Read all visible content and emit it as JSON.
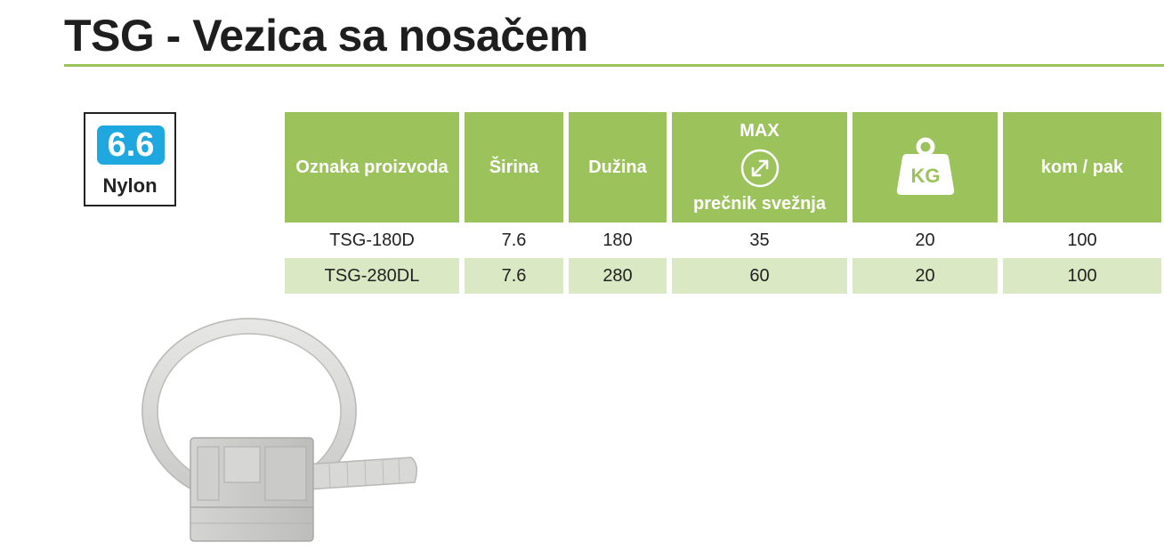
{
  "header": {
    "title": "TSG - Vezica sa nosačem"
  },
  "badge": {
    "number": "6.6",
    "label": "Nylon",
    "color": "#1fa8e0"
  },
  "table": {
    "accent": "#9cc25c",
    "row_alt": "#dbe8c4",
    "headers": {
      "code": "Oznaka proizvoda",
      "width": "Širina",
      "length": "Dužina",
      "max_label": "MAX",
      "bundle": "prečnik svežnja",
      "weight_icon": "kg-weight-icon",
      "weight_text": "KG",
      "pack": "kom / pak"
    },
    "rows": [
      {
        "code": "TSG-180D",
        "width": "7.6",
        "length": "180",
        "bundle": "35",
        "weight": "20",
        "pack": "100"
      },
      {
        "code": "TSG-280DL",
        "width": "7.6",
        "length": "280",
        "bundle": "60",
        "weight": "20",
        "pack": "100"
      }
    ]
  },
  "image": {
    "subject": "cable-tie-with-mount",
    "color": "#d9d9d7"
  }
}
